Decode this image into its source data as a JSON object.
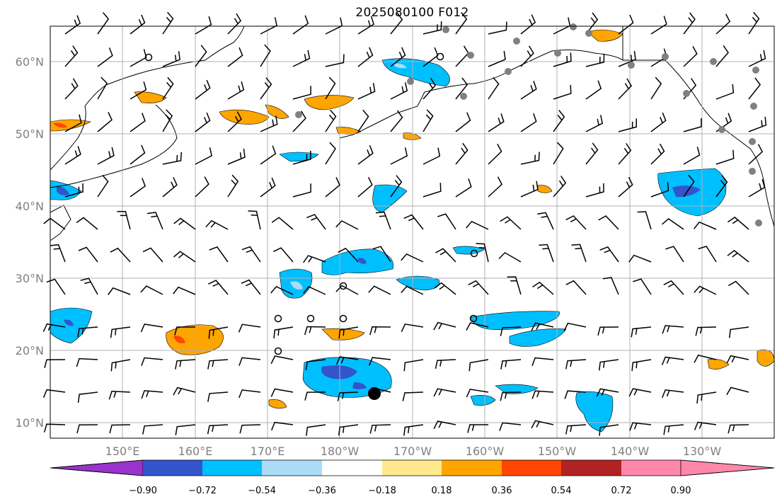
{
  "title": "2025080100 F012",
  "lat_labels": [
    "60°N",
    "50°N",
    "40°N",
    "30°N",
    "20°N",
    "10°N"
  ],
  "lon_labels": [
    "150°E",
    "160°E",
    "170°E",
    "180°W",
    "170°W",
    "160°W",
    "150°W",
    "140°W",
    "130°W"
  ],
  "colorbar": {
    "ticks": [
      "−0.90",
      "−0.72",
      "−0.54",
      "−0.36",
      "−0.18",
      "0.18",
      "0.36",
      "0.54",
      "0.72",
      "0.90"
    ],
    "colors": [
      "#9933cc",
      "#00008b",
      "#3355cc",
      "#00bfff",
      "#aadcf6",
      "#ffffff",
      "#ffe98c",
      "#ffa500",
      "#ff4500",
      "#b22222",
      "#ff88aa"
    ]
  },
  "palette": {
    "blue_light": "#aadcf6",
    "blue": "#00bfff",
    "blue_dark": "#3355cc",
    "navy": "#00008b",
    "yellow": "#ffe98c",
    "orange": "#ffa500",
    "red_orange": "#ff4500",
    "station_gray": "#808080",
    "coast": "#000000",
    "grid": "#b0b0b0"
  }
}
